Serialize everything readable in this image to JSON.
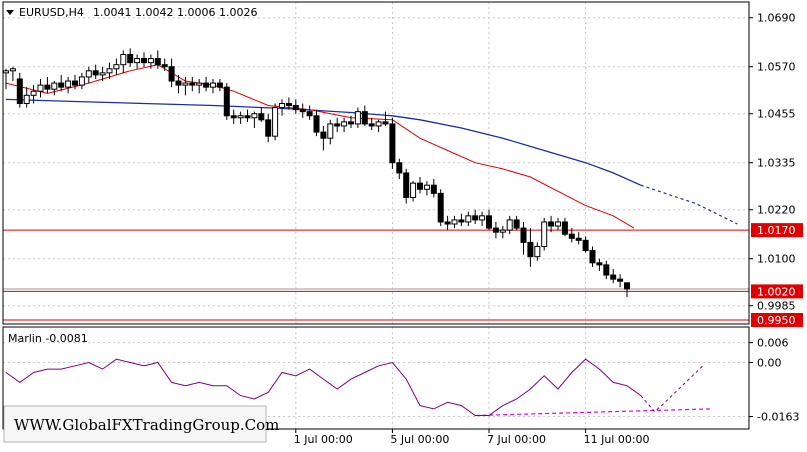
{
  "chart_data": [
    {
      "type": "candlestick",
      "title": "EURUSD,H4",
      "ohlc_header": "1.0041 1.0042 1.0006 1.0026",
      "y_ticks": [
        "1.0690",
        "1.0570",
        "1.0455",
        "1.0335",
        "1.0220",
        "1.0100",
        "0.9985"
      ],
      "ylim": [
        0.995,
        1.0715
      ],
      "x_ticks": [
        "1 Jul 00:00",
        "5 Jul 00:00",
        "7 Jul 00:00",
        "11 Jul 00:00"
      ],
      "x_tick_bars": [
        42,
        56,
        70,
        84
      ],
      "bar_count": 92,
      "grid": true,
      "candles": [
        [
          1.0555,
          1.0565,
          1.0515,
          1.056
        ],
        [
          1.056,
          1.057,
          1.0535,
          1.0565
        ],
        [
          1.054,
          1.0555,
          1.047,
          1.048
        ],
        [
          1.048,
          1.052,
          1.047,
          1.05
        ],
        [
          1.05,
          1.0525,
          1.048,
          1.051
        ],
        [
          1.051,
          1.054,
          1.0495,
          1.0525
        ],
        [
          1.0525,
          1.0545,
          1.0505,
          1.0515
        ],
        [
          1.0515,
          1.0535,
          1.05,
          1.053
        ],
        [
          1.053,
          1.055,
          1.051,
          1.052
        ],
        [
          1.052,
          1.0545,
          1.0505,
          1.0535
        ],
        [
          1.0535,
          1.055,
          1.0515,
          1.0525
        ],
        [
          1.0525,
          1.0555,
          1.0515,
          1.0545
        ],
        [
          1.0545,
          1.057,
          1.053,
          1.056
        ],
        [
          1.056,
          1.0575,
          1.054,
          1.055
        ],
        [
          1.055,
          1.057,
          1.0535,
          1.0555
        ],
        [
          1.0555,
          1.058,
          1.054,
          1.0565
        ],
        [
          1.0565,
          1.059,
          1.055,
          1.0575
        ],
        [
          1.0575,
          1.061,
          1.0555,
          1.06
        ],
        [
          1.06,
          1.0615,
          1.057,
          1.058
        ],
        [
          1.058,
          1.06,
          1.0565,
          1.059
        ],
        [
          1.059,
          1.0605,
          1.057,
          1.058
        ],
        [
          1.058,
          1.06,
          1.0565,
          1.059
        ],
        [
          1.059,
          1.061,
          1.0565,
          1.0575
        ],
        [
          1.0575,
          1.059,
          1.056,
          1.057
        ],
        [
          1.057,
          1.059,
          1.052,
          1.0535
        ],
        [
          1.0535,
          1.055,
          1.0505,
          1.0525
        ],
        [
          1.0525,
          1.0545,
          1.05,
          1.053
        ],
        [
          1.053,
          1.0545,
          1.051,
          1.0525
        ],
        [
          1.0525,
          1.054,
          1.0505,
          1.053
        ],
        [
          1.053,
          1.0545,
          1.051,
          1.052
        ],
        [
          1.052,
          1.054,
          1.0505,
          1.053
        ],
        [
          1.053,
          1.054,
          1.051,
          1.052
        ],
        [
          1.052,
          1.053,
          1.044,
          1.045
        ],
        [
          1.045,
          1.0465,
          1.043,
          1.0445
        ],
        [
          1.0445,
          1.046,
          1.043,
          1.045
        ],
        [
          1.045,
          1.0465,
          1.0435,
          1.0445
        ],
        [
          1.0445,
          1.046,
          1.042,
          1.0455
        ],
        [
          1.0455,
          1.047,
          1.0435,
          1.044
        ],
        [
          1.044,
          1.0455,
          1.0385,
          1.04
        ],
        [
          1.04,
          1.048,
          1.039,
          1.047
        ],
        [
          1.047,
          1.049,
          1.045,
          1.048
        ],
        [
          1.048,
          1.0495,
          1.0465,
          1.0475
        ],
        [
          1.0475,
          1.049,
          1.0455,
          1.0465
        ],
        [
          1.0465,
          1.048,
          1.0445,
          1.046
        ],
        [
          1.046,
          1.0475,
          1.044,
          1.045
        ],
        [
          1.045,
          1.0465,
          1.04,
          1.041
        ],
        [
          1.041,
          1.0425,
          1.0365,
          1.0395
        ],
        [
          1.0395,
          1.044,
          1.038,
          1.043
        ],
        [
          1.043,
          1.0445,
          1.041,
          1.0425
        ],
        [
          1.0425,
          1.0445,
          1.041,
          1.0435
        ],
        [
          1.0435,
          1.045,
          1.042,
          1.043
        ],
        [
          1.043,
          1.047,
          1.042,
          1.046
        ],
        [
          1.046,
          1.0475,
          1.0425,
          1.043
        ],
        [
          1.043,
          1.0445,
          1.0415,
          1.0425
        ],
        [
          1.0425,
          1.044,
          1.041,
          1.0435
        ],
        [
          1.0435,
          1.046,
          1.0425,
          1.043
        ],
        [
          1.043,
          1.0445,
          1.032,
          1.0335
        ],
        [
          1.0335,
          1.0345,
          1.0295,
          1.031
        ],
        [
          1.031,
          1.032,
          1.0235,
          1.025
        ],
        [
          1.025,
          1.029,
          1.024,
          1.0285
        ],
        [
          1.0285,
          1.03,
          1.026,
          1.027
        ],
        [
          1.027,
          1.029,
          1.0255,
          1.028
        ],
        [
          1.028,
          1.0295,
          1.025,
          1.026
        ],
        [
          1.026,
          1.027,
          1.018,
          1.019
        ],
        [
          1.019,
          1.0205,
          1.017,
          1.0185
        ],
        [
          1.0185,
          1.0205,
          1.0175,
          1.0195
        ],
        [
          1.0195,
          1.021,
          1.018,
          1.019
        ],
        [
          1.019,
          1.0215,
          1.018,
          1.0205
        ],
        [
          1.0205,
          1.022,
          1.0185,
          1.0195
        ],
        [
          1.0195,
          1.0215,
          1.018,
          1.0205
        ],
        [
          1.0205,
          1.022,
          1.017,
          1.0175
        ],
        [
          1.0175,
          1.019,
          1.015,
          1.0165
        ],
        [
          1.0165,
          1.018,
          1.015,
          1.017
        ],
        [
          1.017,
          1.0205,
          1.016,
          1.0195
        ],
        [
          1.0195,
          1.0205,
          1.017,
          1.0175
        ],
        [
          1.0175,
          1.019,
          1.011,
          1.014
        ],
        [
          1.014,
          1.0175,
          1.008,
          1.0105
        ],
        [
          1.0105,
          1.014,
          1.0095,
          1.013
        ],
        [
          1.013,
          1.02,
          1.012,
          1.019
        ],
        [
          1.019,
          1.0205,
          1.0165,
          1.018
        ],
        [
          1.018,
          1.02,
          1.017,
          1.019
        ],
        [
          1.019,
          1.02,
          1.0155,
          1.016
        ],
        [
          1.016,
          1.0175,
          1.014,
          1.015
        ],
        [
          1.015,
          1.0165,
          1.0135,
          1.0145
        ],
        [
          1.0145,
          1.0155,
          1.0115,
          1.012
        ],
        [
          1.012,
          1.013,
          1.008,
          1.009
        ],
        [
          1.009,
          1.01,
          1.007,
          1.0085
        ],
        [
          1.0085,
          1.0095,
          1.005,
          1.006
        ],
        [
          1.006,
          1.0075,
          1.004,
          1.005
        ],
        [
          1.005,
          1.0062,
          1.003,
          1.0045
        ],
        [
          1.0041,
          1.0042,
          1.0006,
          1.0026
        ]
      ],
      "ma_fast": [
        [
          0,
          1.053
        ],
        [
          6,
          1.0505
        ],
        [
          12,
          1.053
        ],
        [
          18,
          1.056
        ],
        [
          22,
          1.0575
        ],
        [
          26,
          1.0535
        ],
        [
          30,
          1.0525
        ],
        [
          33,
          1.051
        ],
        [
          38,
          1.0475
        ],
        [
          44,
          1.0465
        ],
        [
          50,
          1.0445
        ],
        [
          56,
          1.044
        ],
        [
          60,
          1.0395
        ],
        [
          64,
          1.0365
        ],
        [
          68,
          1.0335
        ],
        [
          72,
          1.032
        ],
        [
          76,
          1.03
        ],
        [
          80,
          1.0265
        ],
        [
          84,
          1.023
        ],
        [
          88,
          1.0205
        ],
        [
          91,
          1.0175
        ]
      ],
      "ma_slow": [
        [
          0,
          1.049
        ],
        [
          10,
          1.0485
        ],
        [
          20,
          1.048
        ],
        [
          30,
          1.0475
        ],
        [
          40,
          1.0468
        ],
        [
          50,
          1.0458
        ],
        [
          56,
          1.045
        ],
        [
          60,
          1.044
        ],
        [
          66,
          1.042
        ],
        [
          72,
          1.0395
        ],
        [
          78,
          1.0365
        ],
        [
          84,
          1.0335
        ],
        [
          88,
          1.031
        ],
        [
          92,
          1.028
        ]
      ],
      "ma_slow_projection": [
        [
          92,
          1.028
        ],
        [
          100,
          1.0235
        ],
        [
          106,
          1.0185
        ]
      ],
      "levels": [
        {
          "value": 1.017,
          "label": "1.0170",
          "color": "#e00000"
        },
        {
          "value": 1.002,
          "label": "1.0020",
          "color": "#e00000"
        },
        {
          "value": 0.995,
          "label": "0.9950",
          "color": "#e00000"
        }
      ],
      "current_price": 1.0026,
      "colors": {
        "bull": "#ffffff",
        "bear": "#000000",
        "ma_fast": "#e00000",
        "ma_slow": "#1a2fa0",
        "level": "#e00000"
      }
    },
    {
      "type": "line",
      "title": "Marlin -0.0081",
      "y_ticks": [
        "0.006",
        "0.00",
        "-0.0163"
      ],
      "ylim": [
        -0.0175,
        0.008
      ],
      "series": [
        {
          "values": [
            [
              0,
              -0.003
            ],
            [
              2,
              -0.006
            ],
            [
              4,
              -0.003
            ],
            [
              6,
              -0.002
            ],
            [
              8,
              -0.002
            ],
            [
              10,
              -0.001
            ],
            [
              12,
              0.0
            ],
            [
              14,
              -0.002
            ],
            [
              16,
              0.001
            ],
            [
              18,
              0.0
            ],
            [
              20,
              -0.001
            ],
            [
              22,
              0.0
            ],
            [
              24,
              -0.006
            ],
            [
              26,
              -0.007
            ],
            [
              28,
              -0.006
            ],
            [
              30,
              -0.007
            ],
            [
              32,
              -0.007
            ],
            [
              34,
              -0.01
            ],
            [
              36,
              -0.011
            ],
            [
              38,
              -0.009
            ],
            [
              40,
              -0.003
            ],
            [
              42,
              -0.004
            ],
            [
              44,
              -0.002
            ],
            [
              46,
              -0.005
            ],
            [
              48,
              -0.008
            ],
            [
              50,
              -0.005
            ],
            [
              52,
              -0.003
            ],
            [
              54,
              -0.001
            ],
            [
              56,
              0.0
            ],
            [
              58,
              -0.005
            ],
            [
              60,
              -0.013
            ],
            [
              62,
              -0.014
            ],
            [
              64,
              -0.012
            ],
            [
              66,
              -0.013
            ],
            [
              68,
              -0.016
            ],
            [
              70,
              -0.016
            ],
            [
              72,
              -0.013
            ],
            [
              74,
              -0.011
            ],
            [
              76,
              -0.008
            ],
            [
              78,
              -0.004
            ],
            [
              80,
              -0.008
            ],
            [
              82,
              -0.003
            ],
            [
              84,
              0.001
            ],
            [
              86,
              -0.002
            ],
            [
              88,
              -0.006
            ],
            [
              90,
              -0.007
            ],
            [
              92,
              -0.01
            ]
          ],
          "color": "#800080"
        }
      ],
      "projection_up": [
        [
          95,
          -0.013
        ],
        [
          101,
          -0.001
        ]
      ],
      "trendline": [
        [
          68,
          -0.016
        ],
        [
          102,
          -0.014
        ]
      ],
      "trendline_color": "#e000e0"
    }
  ],
  "watermark": "WWW.GlobalFXTradingGroup.Com"
}
